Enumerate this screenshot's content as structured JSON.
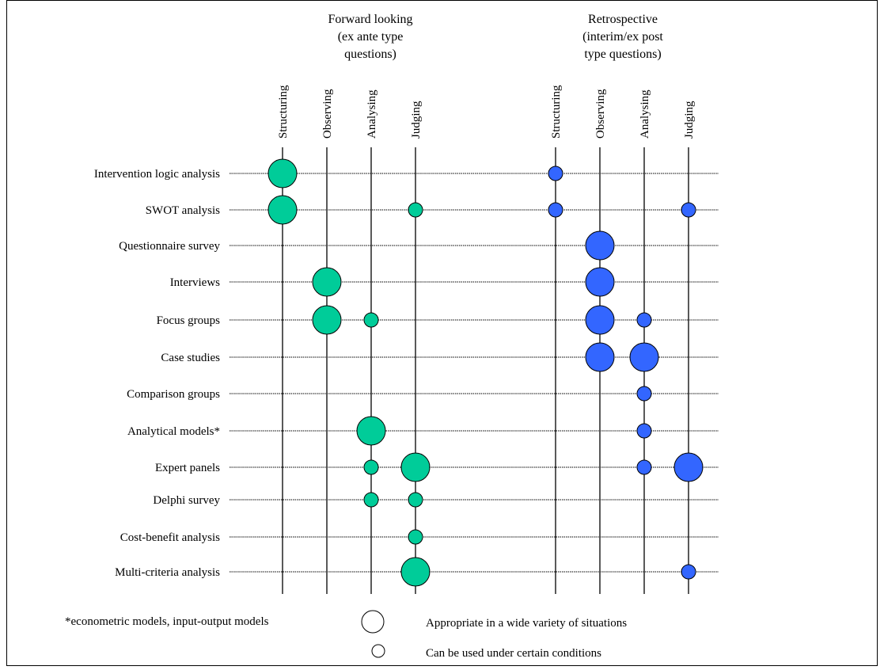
{
  "groups": [
    {
      "title_lines": [
        "Forward looking",
        "(ex ante type",
        "questions)"
      ],
      "color": "#00cc99"
    },
    {
      "title_lines": [
        "Retrospective",
        "(interim/ex post",
        "type questions)"
      ],
      "color": "#3366ff"
    }
  ],
  "stages": [
    "Structuring",
    "Observing",
    "Analysing",
    "Judging"
  ],
  "methods": [
    "Intervention logic analysis",
    "SWOT analysis",
    "Questionnaire survey",
    "Interviews",
    "Focus groups",
    "Case studies",
    "Comparison groups",
    "Analytical models*",
    "Expert panels",
    "Delphi survey",
    "Cost-benefit analysis",
    "Multi-criteria analysis"
  ],
  "chart_data": {
    "type": "bubble-matrix",
    "size_scale": {
      "large": "Appropriate in a wide variety of situations",
      "small": "Can be used under certain conditions"
    },
    "forward": [
      {
        "method": "Intervention logic analysis",
        "stage": "Structuring",
        "size": "large"
      },
      {
        "method": "SWOT analysis",
        "stage": "Structuring",
        "size": "large"
      },
      {
        "method": "SWOT analysis",
        "stage": "Judging",
        "size": "small"
      },
      {
        "method": "Interviews",
        "stage": "Observing",
        "size": "large"
      },
      {
        "method": "Focus groups",
        "stage": "Observing",
        "size": "large"
      },
      {
        "method": "Focus groups",
        "stage": "Analysing",
        "size": "small"
      },
      {
        "method": "Analytical models*",
        "stage": "Analysing",
        "size": "large"
      },
      {
        "method": "Expert panels",
        "stage": "Analysing",
        "size": "small"
      },
      {
        "method": "Expert panels",
        "stage": "Judging",
        "size": "large"
      },
      {
        "method": "Delphi survey",
        "stage": "Analysing",
        "size": "small"
      },
      {
        "method": "Delphi survey",
        "stage": "Judging",
        "size": "small"
      },
      {
        "method": "Cost-benefit analysis",
        "stage": "Judging",
        "size": "small"
      },
      {
        "method": "Multi-criteria analysis",
        "stage": "Judging",
        "size": "large"
      }
    ],
    "retrospective": [
      {
        "method": "Intervention logic analysis",
        "stage": "Structuring",
        "size": "small"
      },
      {
        "method": "SWOT analysis",
        "stage": "Structuring",
        "size": "small"
      },
      {
        "method": "SWOT analysis",
        "stage": "Judging",
        "size": "small"
      },
      {
        "method": "Questionnaire survey",
        "stage": "Observing",
        "size": "large"
      },
      {
        "method": "Interviews",
        "stage": "Observing",
        "size": "large"
      },
      {
        "method": "Focus groups",
        "stage": "Observing",
        "size": "large"
      },
      {
        "method": "Focus groups",
        "stage": "Analysing",
        "size": "small"
      },
      {
        "method": "Case studies",
        "stage": "Observing",
        "size": "large"
      },
      {
        "method": "Case studies",
        "stage": "Analysing",
        "size": "large"
      },
      {
        "method": "Comparison groups",
        "stage": "Analysing",
        "size": "small"
      },
      {
        "method": "Analytical models*",
        "stage": "Analysing",
        "size": "small"
      },
      {
        "method": "Expert panels",
        "stage": "Analysing",
        "size": "small"
      },
      {
        "method": "Expert panels",
        "stage": "Judging",
        "size": "large"
      },
      {
        "method": "Multi-criteria analysis",
        "stage": "Judging",
        "size": "small"
      }
    ]
  },
  "footnote": "*econometric models, input-output models",
  "legend": {
    "large_label": "Appropriate in a wide variety of situations",
    "small_label": "Can be used under certain conditions"
  }
}
